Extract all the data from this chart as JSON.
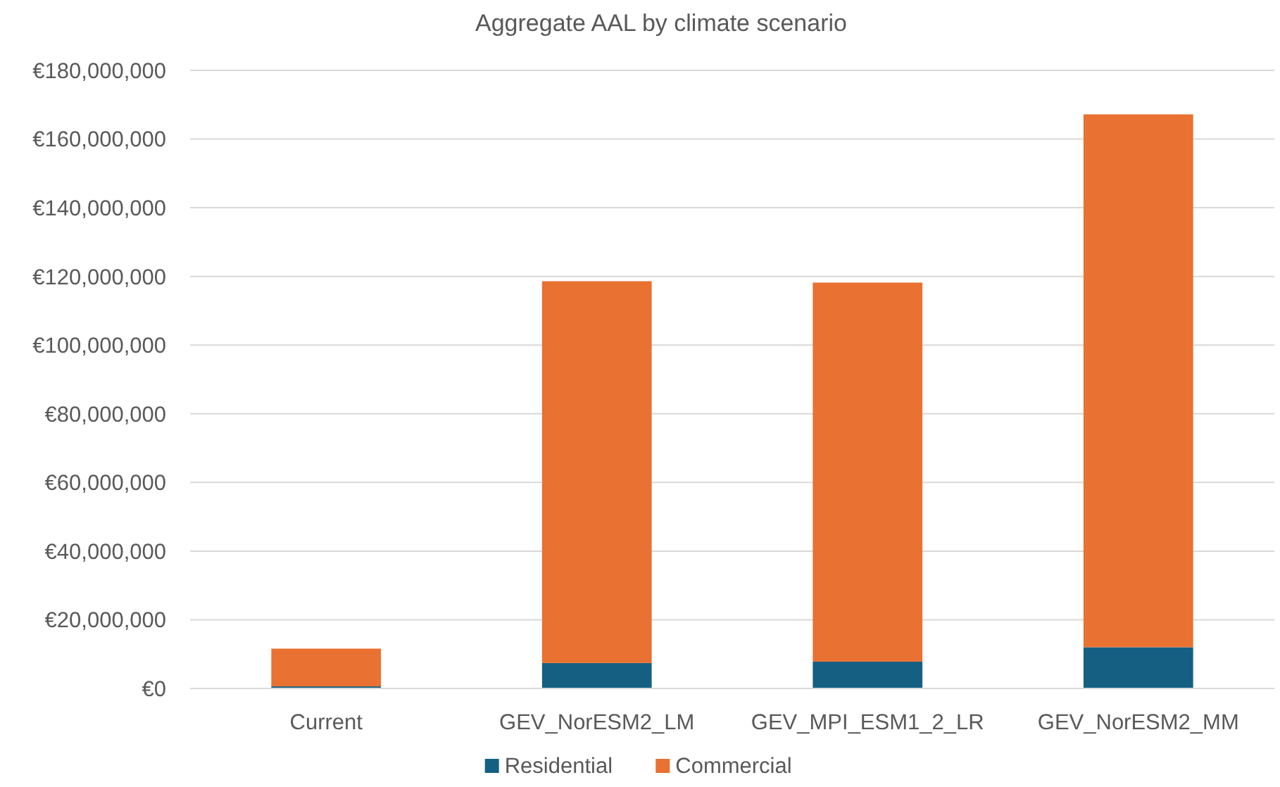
{
  "chart_data": {
    "type": "bar",
    "title": "Aggregate AAL by climate scenario",
    "stacked": true,
    "categories": [
      "Current",
      "GEV_NorESM2_LM",
      "GEV_MPI_ESM1_2_LR",
      "GEV_NorESM2_MM"
    ],
    "series": [
      {
        "name": "Residential",
        "color": "#156082",
        "values": [
          600000,
          7400000,
          7800000,
          12000000
        ]
      },
      {
        "name": "Commercial",
        "color": "#e97132",
        "values": [
          11000000,
          111200000,
          110400000,
          155200000
        ]
      }
    ],
    "ylim": [
      0,
      180000000
    ],
    "yticks": [
      {
        "value": 0,
        "label": "€0"
      },
      {
        "value": 20000000,
        "label": "€20,000,000"
      },
      {
        "value": 40000000,
        "label": "€40,000,000"
      },
      {
        "value": 60000000,
        "label": "€60,000,000"
      },
      {
        "value": 80000000,
        "label": "€80,000,000"
      },
      {
        "value": 100000000,
        "label": "€100,000,000"
      },
      {
        "value": 120000000,
        "label": "€120,000,000"
      },
      {
        "value": 140000000,
        "label": "€140,000,000"
      },
      {
        "value": 160000000,
        "label": "€160,000,000"
      },
      {
        "value": 180000000,
        "label": "€180,000,000"
      }
    ],
    "grid": "y",
    "legend": "bottom"
  }
}
